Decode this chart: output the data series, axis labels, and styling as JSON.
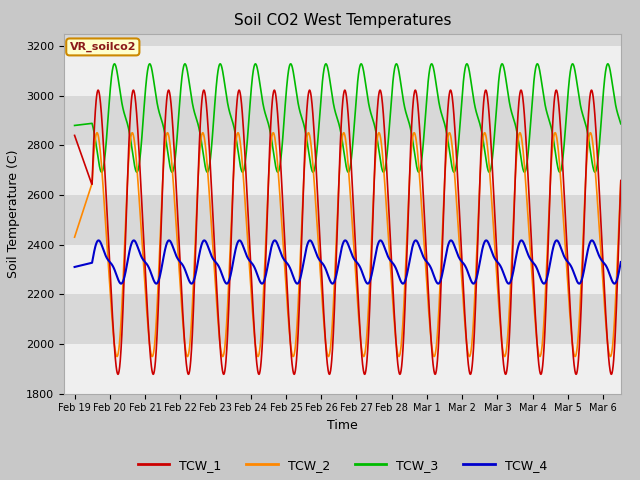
{
  "title": "Soil CO2 West Temperatures",
  "xlabel": "Time",
  "ylabel": "Soil Temperature (C)",
  "ylim": [
    1800,
    3250
  ],
  "xlim": [
    -0.3,
    15.5
  ],
  "bg_color": "#d8d8d8",
  "plot_bg": "#d8d8d8",
  "legend_label": "VR_soilco2",
  "xtick_labels": [
    "Feb 19",
    "Feb 20",
    "Feb 21",
    "Feb 22",
    "Feb 23",
    "Feb 24",
    "Feb 25",
    "Feb 26",
    "Feb 27",
    "Feb 28",
    "Mar 1",
    "Mar 2",
    "Mar 3",
    "Mar 4",
    "Mar 5",
    "Mar 6"
  ],
  "ytick_labels": [
    1800,
    2000,
    2200,
    2400,
    2600,
    2800,
    3000,
    3200
  ],
  "line_colors": {
    "TCW_1": "#cc0000",
    "TCW_2": "#ff8800",
    "TCW_3": "#00bb00",
    "TCW_4": "#0000cc"
  },
  "line_width": 1.2
}
